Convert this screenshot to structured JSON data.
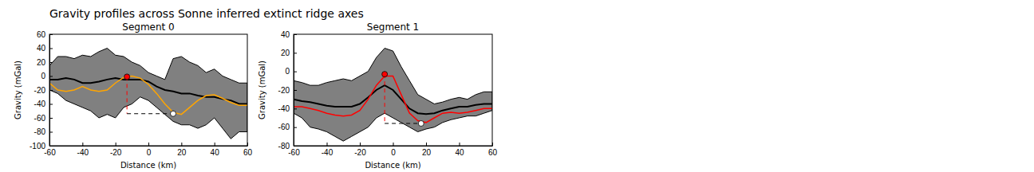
{
  "title": "Gravity profiles across Sonne inferred extinct ridge axes",
  "chart_data": [
    {
      "type": "line",
      "title": "Segment 0",
      "x_label": "Distance (km)",
      "y_label": "Gravity (mGal)",
      "x": [
        -60,
        -55,
        -50,
        -45,
        -40,
        -35,
        -30,
        -25,
        -20,
        -15,
        -10,
        -5,
        0,
        5,
        10,
        15,
        20,
        25,
        30,
        35,
        40,
        45,
        50,
        55,
        60
      ],
      "xlim": [
        -60,
        60
      ],
      "ylim": [
        -100,
        60
      ],
      "xticks": [
        -60,
        -40,
        -20,
        0,
        20,
        40,
        60
      ],
      "yticks": [
        -100,
        -80,
        -60,
        -40,
        -20,
        0,
        20,
        40,
        60
      ],
      "series": [
        {
          "type": "area",
          "color": "#808080",
          "values": [
            15,
            28,
            28,
            25,
            30,
            28,
            35,
            40,
            30,
            28,
            20,
            15,
            5,
            0,
            -5,
            25,
            28,
            20,
            15,
            5,
            10,
            0,
            -5,
            -10,
            -10
          ],
          "lower": [
            -20,
            -25,
            -35,
            -40,
            -45,
            -50,
            -60,
            -55,
            -60,
            -45,
            -40,
            -30,
            -35,
            -45,
            -55,
            -65,
            -70,
            -70,
            -75,
            -70,
            -60,
            -75,
            -90,
            -80,
            -80
          ]
        },
        {
          "type": "line",
          "color": "#000000",
          "values": [
            -5,
            -5,
            -3,
            -5,
            -10,
            -10,
            -8,
            -5,
            -3,
            -5,
            -5,
            -5,
            -8,
            -15,
            -20,
            -22,
            -25,
            -25,
            -28,
            -30,
            -30,
            -33,
            -35,
            -40,
            -40
          ]
        },
        {
          "type": "line",
          "color": "#ffa500",
          "values": [
            -10,
            -20,
            -22,
            -20,
            -15,
            -20,
            -22,
            -20,
            -10,
            -2,
            0,
            -3,
            -12,
            -25,
            -40,
            -52,
            -55,
            -45,
            -35,
            -28,
            -27,
            -32,
            -38,
            -42,
            -42
          ]
        },
        {
          "type": "line",
          "line_style": "dashed",
          "color": "#ff0000",
          "x": [
            -13,
            -13
          ],
          "values": [
            -1,
            -54
          ]
        },
        {
          "type": "line",
          "line_style": "dashed",
          "color": "#000000",
          "x": [
            -13,
            15
          ],
          "values": [
            -54,
            -54
          ]
        },
        {
          "type": "scatter",
          "color": "#ff0000",
          "x": [
            -13
          ],
          "values": [
            -1
          ]
        },
        {
          "type": "scatter",
          "color": "#ffffff",
          "x": [
            15
          ],
          "values": [
            -54
          ]
        }
      ]
    },
    {
      "type": "line",
      "title": "Segment 1",
      "x_label": "Distance (km)",
      "y_label": "Gravity (mGal)",
      "x": [
        -60,
        -55,
        -50,
        -45,
        -40,
        -35,
        -30,
        -25,
        -20,
        -15,
        -10,
        -5,
        0,
        5,
        10,
        15,
        20,
        25,
        30,
        35,
        40,
        45,
        50,
        55,
        60
      ],
      "xlim": [
        -60,
        60
      ],
      "ylim": [
        -80,
        40
      ],
      "xticks": [
        -60,
        -40,
        -20,
        0,
        20,
        40,
        60
      ],
      "yticks": [
        -80,
        -60,
        -40,
        -20,
        0,
        20,
        40
      ],
      "series": [
        {
          "type": "area",
          "color": "#808080",
          "values": [
            -10,
            -12,
            -15,
            -15,
            -12,
            -10,
            -8,
            -10,
            -5,
            0,
            15,
            25,
            22,
            5,
            -10,
            -25,
            -30,
            -35,
            -33,
            -30,
            -28,
            -30,
            -25,
            -22,
            -22
          ],
          "lower": [
            -45,
            -50,
            -60,
            -62,
            -65,
            -70,
            -75,
            -70,
            -65,
            -60,
            -50,
            -45,
            -50,
            -55,
            -60,
            -65,
            -62,
            -60,
            -55,
            -52,
            -50,
            -48,
            -48,
            -45,
            -42
          ]
        },
        {
          "type": "line",
          "color": "#000000",
          "values": [
            -30,
            -32,
            -33,
            -35,
            -37,
            -38,
            -38,
            -38,
            -35,
            -28,
            -20,
            -15,
            -20,
            -30,
            -40,
            -45,
            -46,
            -45,
            -42,
            -40,
            -38,
            -38,
            -36,
            -35,
            -35
          ]
        },
        {
          "type": "line",
          "color": "#ff0000",
          "values": [
            -38,
            -38,
            -40,
            -42,
            -45,
            -47,
            -48,
            -47,
            -42,
            -30,
            -15,
            -5,
            -5,
            -25,
            -45,
            -53,
            -55,
            -50,
            -45,
            -44,
            -45,
            -44,
            -42,
            -40,
            -40
          ]
        },
        {
          "type": "line",
          "line_style": "dashed",
          "color": "#ff0000",
          "x": [
            -5,
            -5
          ],
          "values": [
            -3,
            -56
          ]
        },
        {
          "type": "line",
          "line_style": "dashed",
          "color": "#000000",
          "x": [
            -5,
            17
          ],
          "values": [
            -56,
            -56
          ]
        },
        {
          "type": "scatter",
          "color": "#ff0000",
          "x": [
            -5
          ],
          "values": [
            -3
          ]
        },
        {
          "type": "scatter",
          "color": "#ffffff",
          "x": [
            17
          ],
          "values": [
            -56
          ]
        }
      ]
    }
  ]
}
